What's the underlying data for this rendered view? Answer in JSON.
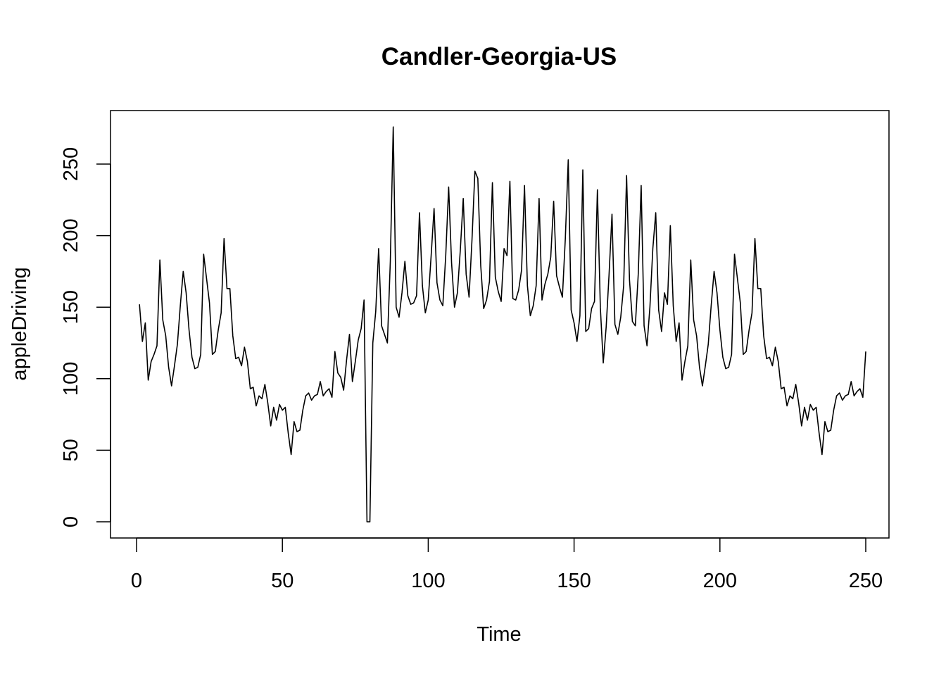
{
  "chart_data": {
    "type": "line",
    "title": "Candler-Georgia-US",
    "xlabel": "Time",
    "ylabel": "appleDriving",
    "xlim": [
      0,
      250
    ],
    "ylim": [
      0,
      250
    ],
    "x_ticks": [
      0,
      50,
      100,
      150,
      200,
      250
    ],
    "y_ticks": [
      0,
      50,
      100,
      150,
      200,
      250
    ],
    "x_tick_labels": [
      "0",
      "50",
      "100",
      "150",
      "200",
      "250"
    ],
    "y_tick_labels": [
      "0",
      "50",
      "100",
      "150",
      "200",
      "250"
    ],
    "grid": false,
    "line_color": "#000000",
    "x_start": 1,
    "series": [
      {
        "name": "appleDriving",
        "values": [
          152,
          126,
          139,
          99,
          112,
          117,
          123,
          183,
          141,
          130,
          108,
          95,
          109,
          124,
          151,
          175,
          160,
          134,
          115,
          107,
          108,
          117,
          187,
          170,
          153,
          117,
          119,
          134,
          146,
          198,
          163,
          163,
          130,
          114,
          115,
          109,
          122,
          112,
          93,
          94,
          81,
          88,
          86,
          96,
          83,
          67,
          80,
          71,
          82,
          78,
          80,
          62,
          47,
          70,
          63,
          64,
          78,
          88,
          90,
          85,
          88,
          89,
          98,
          88,
          91,
          93,
          87,
          119,
          104,
          101,
          92,
          113,
          131,
          98,
          112,
          127,
          135,
          155,
          0,
          0,
          125,
          147,
          191,
          137,
          131,
          125,
          182,
          276,
          150,
          143,
          160,
          182,
          158,
          152,
          153,
          158,
          216,
          165,
          146,
          155,
          186,
          219,
          167,
          155,
          151,
          186,
          234,
          181,
          150,
          160,
          190,
          226,
          173,
          157,
          197,
          245,
          240,
          179,
          149,
          155,
          168,
          237,
          171,
          161,
          154,
          191,
          186,
          238,
          156,
          155,
          162,
          176,
          235,
          165,
          144,
          151,
          165,
          226,
          155,
          166,
          173,
          185,
          224,
          172,
          164,
          157,
          198,
          253,
          148,
          139,
          126,
          144,
          246,
          133,
          135,
          149,
          154,
          232,
          150,
          111,
          136,
          173,
          215,
          138,
          131,
          143,
          165,
          242,
          169,
          140,
          137,
          173,
          235,
          137,
          123,
          150,
          191,
          216,
          148,
          133,
          160,
          152,
          207,
          151,
          126,
          139,
          99,
          112,
          123,
          183,
          141,
          130,
          108,
          95,
          109,
          124,
          151,
          175,
          160,
          134,
          115,
          107,
          108,
          117,
          187,
          170,
          153,
          117,
          119,
          134,
          146,
          198,
          163,
          163,
          130,
          114,
          115,
          109,
          122,
          112,
          93,
          94,
          81,
          88,
          86,
          96,
          83,
          67,
          80,
          71,
          82,
          78,
          80,
          62,
          47,
          70,
          63,
          64,
          78,
          88,
          90,
          85,
          88,
          89,
          98,
          88,
          91,
          93,
          87,
          119
        ]
      }
    ]
  }
}
